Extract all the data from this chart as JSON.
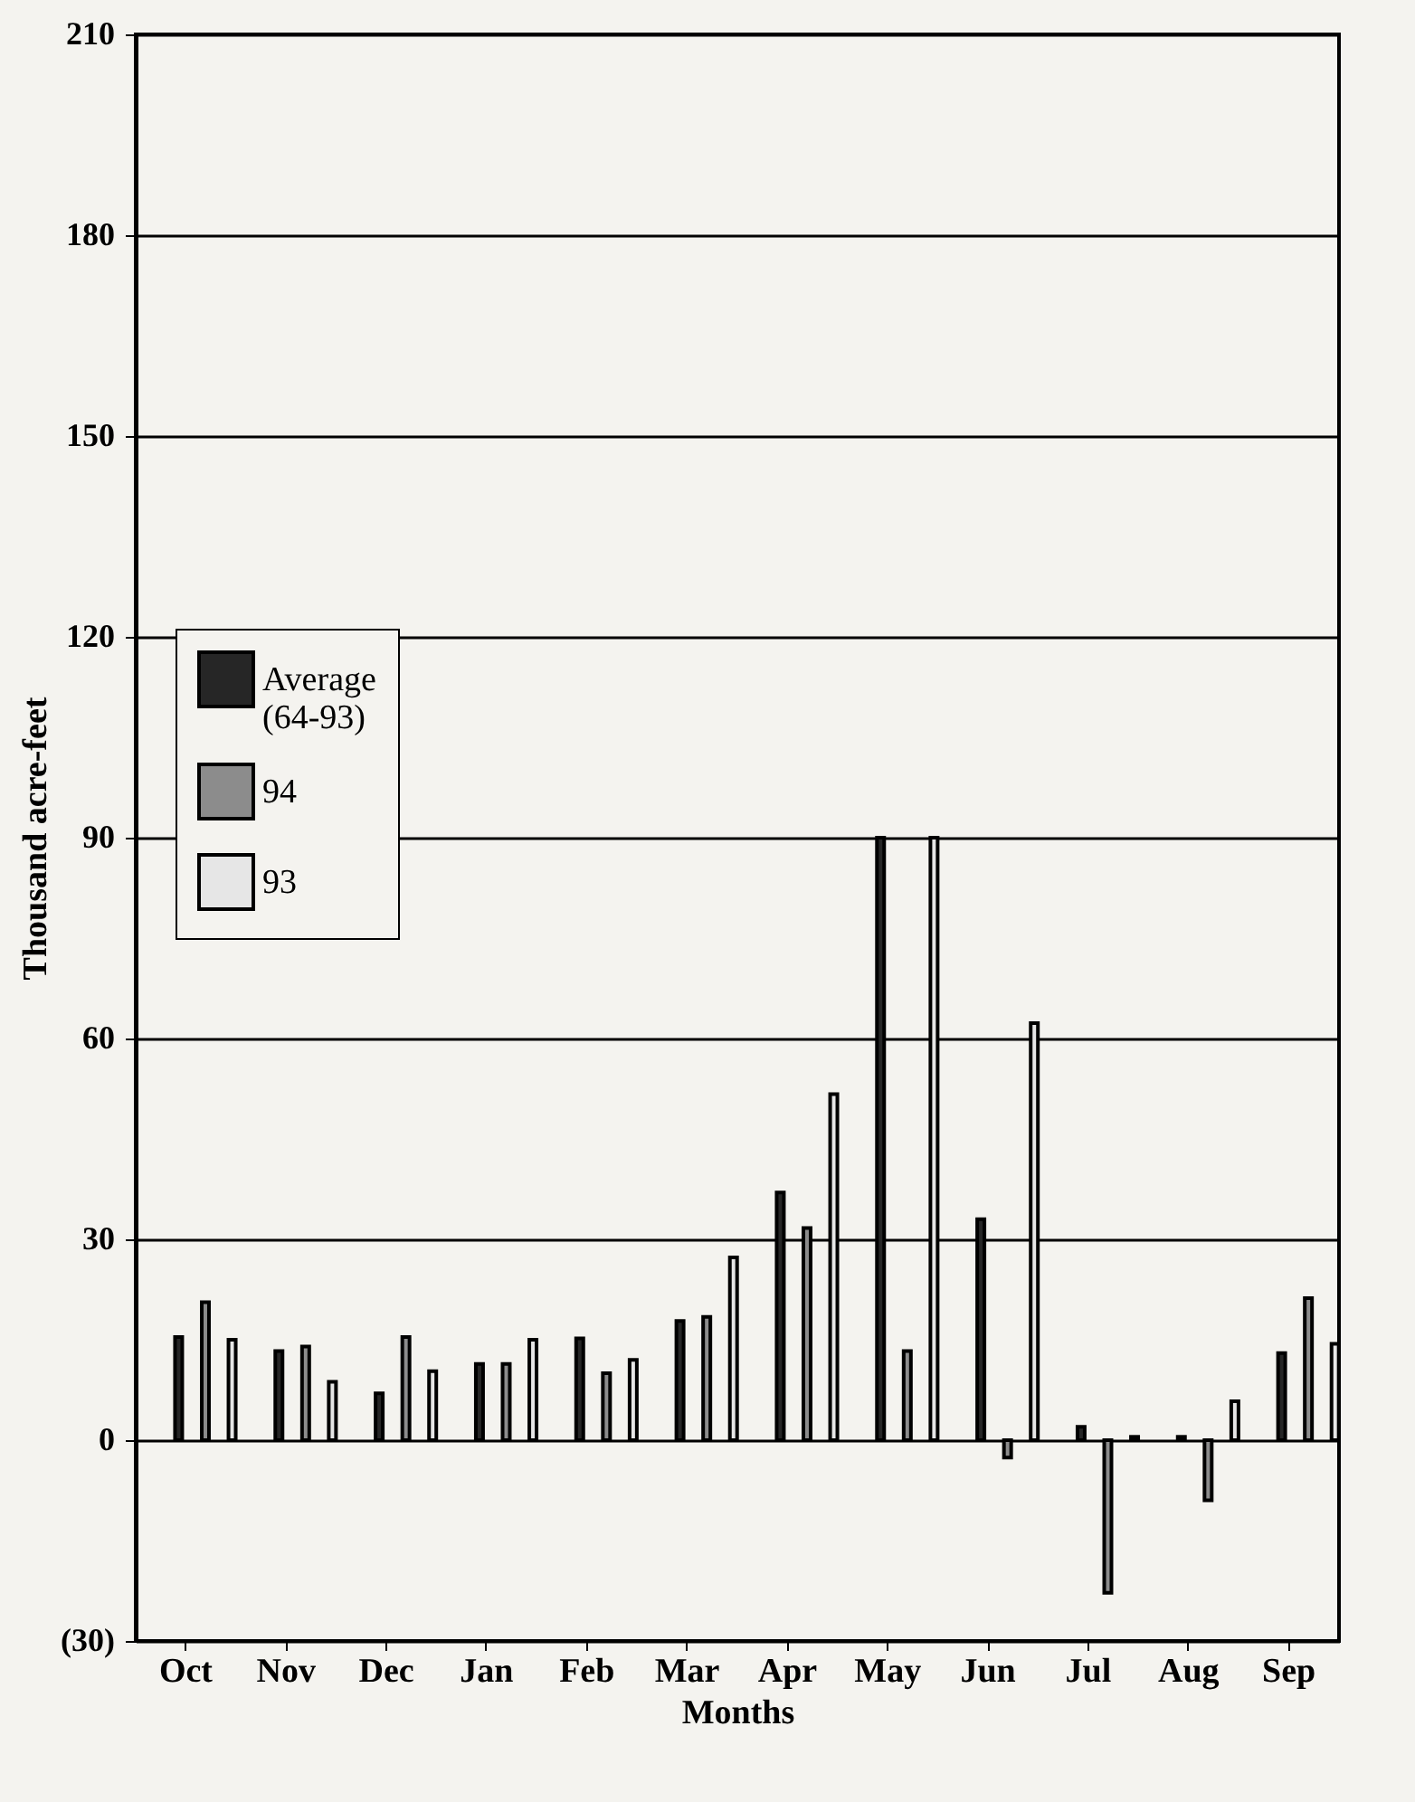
{
  "chart_data": {
    "type": "bar",
    "categories": [
      "Oct",
      "Nov",
      "Dec",
      "Jan",
      "Feb",
      "Mar",
      "Apr",
      "May",
      "Jun",
      "Jul",
      "Aug",
      "Sep"
    ],
    "series": [
      {
        "name": "Average (64-93)",
        "color": "#262626",
        "values": [
          15.4,
          13.3,
          7,
          11.4,
          15.2,
          17.8,
          37,
          90,
          33,
          2,
          0.5,
          13
        ]
      },
      {
        "name": "94",
        "color": "#8c8c8c",
        "values": [
          20.6,
          14,
          15.4,
          11.4,
          10,
          18.4,
          31.7,
          13.3,
          -2.6,
          -22.8,
          -9,
          21.2
        ]
      },
      {
        "name": "93",
        "color": "#e6e6e6",
        "values": [
          15,
          8.7,
          10.3,
          15,
          12,
          27.3,
          51.7,
          90,
          62.3,
          0.5,
          5.8,
          14.4
        ]
      }
    ],
    "xlabel": "Months",
    "ylabel": "Thousand acre-feet",
    "ylim": [
      -30,
      210
    ],
    "yticks": [
      {
        "value": -30,
        "label": "(30)"
      },
      0,
      30,
      60,
      90,
      120,
      150,
      180,
      210
    ],
    "grid": "y",
    "legend": "left"
  }
}
